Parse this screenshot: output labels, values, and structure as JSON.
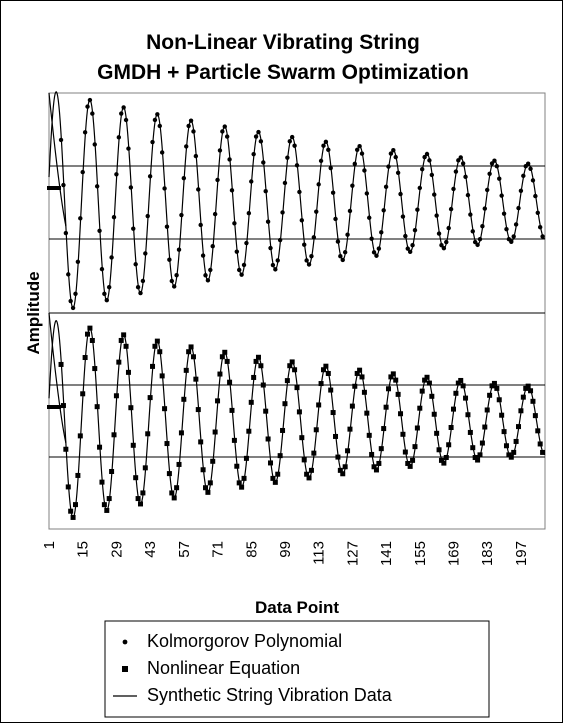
{
  "chart_data": {
    "type": "line",
    "title": "Non-Linear Vibrating String",
    "subtitle": "GMDH + Particle Swarm Optimization",
    "xlabel": "Data Point",
    "ylabel": "Amplitude",
    "x_tick_labels": [
      "1",
      "15",
      "29",
      "43",
      "57",
      "71",
      "85",
      "99",
      "113",
      "127",
      "141",
      "155",
      "169",
      "183",
      "197"
    ],
    "x_range": [
      1,
      207
    ],
    "grid": "horizontal",
    "legend_position": "bottom",
    "legend": [
      {
        "name": "Kolmorgorov Polynomial",
        "marker": "dot"
      },
      {
        "name": "Nonlinear Equation",
        "marker": "square"
      },
      {
        "name": "Synthetic String Vibration Data",
        "marker": "line"
      }
    ],
    "panels": [
      {
        "position": "top",
        "model_series": "Kolmorgorov Polynomial",
        "reference_series": "Synthetic String Vibration Data",
        "period": 14,
        "initial_amplitude": 1.0,
        "final_amplitude": 0.33
      },
      {
        "position": "bottom",
        "model_series": "Nonlinear Equation",
        "reference_series": "Synthetic String Vibration Data",
        "period": 14,
        "initial_amplitude": 1.0,
        "final_amplitude": 0.33
      }
    ]
  }
}
